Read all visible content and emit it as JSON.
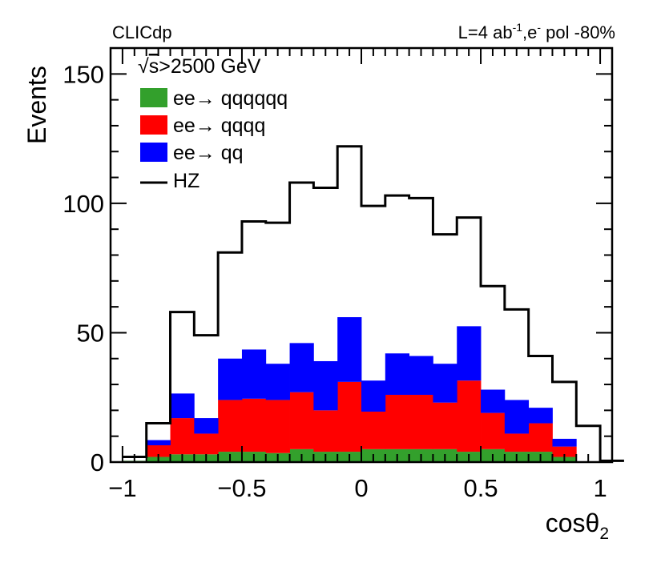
{
  "chart_data": {
    "type": "histogram-stacked",
    "corner_left": "CLICdp",
    "corner_right": {
      "prefix": "L=4 ab",
      "lumi_exp": "-1",
      "mid": ",e",
      "pol_sup": "-",
      "suffix": " pol -80%"
    },
    "xlabel": {
      "base": "cosθ",
      "sub": "2"
    },
    "ylabel": "Events",
    "xlim": [
      -1.05,
      1.05
    ],
    "ylim": [
      0,
      160
    ],
    "xticks": [
      {
        "value": -1,
        "label": "−1"
      },
      {
        "value": -0.5,
        "label": "−0.5"
      },
      {
        "value": 0,
        "label": "0"
      },
      {
        "value": 0.5,
        "label": "0.5"
      },
      {
        "value": 1,
        "label": "1"
      }
    ],
    "yticks": [
      {
        "value": 0,
        "label": "0"
      },
      {
        "value": 50,
        "label": "50"
      },
      {
        "value": 100,
        "label": "100"
      },
      {
        "value": 150,
        "label": "150"
      }
    ],
    "bin_edges": [
      -1.0,
      -0.9,
      -0.8,
      -0.7,
      -0.6,
      -0.5,
      -0.4,
      -0.3,
      -0.2,
      -0.1,
      0.0,
      0.1,
      0.2,
      0.3,
      0.4,
      0.5,
      0.6,
      0.7,
      0.8,
      0.9,
      1.0
    ],
    "stack": [
      {
        "name": "ee→ qqqqqq",
        "color": "#33a02c",
        "values": [
          0.5,
          2,
          3,
          3,
          4,
          4,
          3.5,
          5,
          4,
          4,
          5,
          5,
          5,
          5,
          4,
          5,
          4,
          4,
          2,
          0
        ]
      },
      {
        "name": "ee→ qqqq",
        "color": "#ff0000",
        "values": [
          0,
          4.5,
          14,
          8,
          20,
          20.5,
          20.5,
          22,
          16,
          27,
          14.5,
          21,
          21,
          18,
          27.5,
          14,
          7,
          11,
          4,
          0
        ]
      },
      {
        "name": "ee→ qq",
        "color": "#0000ff",
        "values": [
          0,
          2,
          9.5,
          6,
          16,
          19,
          14,
          19,
          19,
          25,
          12,
          16,
          15,
          15,
          21,
          9,
          13,
          6,
          3,
          0
        ]
      }
    ],
    "overlay": {
      "name": "HZ",
      "color": "#000000",
      "values": [
        2,
        15,
        58,
        49,
        81,
        93,
        92.5,
        108,
        106,
        122,
        99,
        103,
        102,
        88,
        94.5,
        68,
        59,
        41,
        31,
        14
      ],
      "extra": [
        0.5
      ]
    },
    "legend": {
      "header": {
        "root": "√",
        "s": "s",
        "rest": ">2500 GeV"
      },
      "placement": "top-left"
    }
  }
}
